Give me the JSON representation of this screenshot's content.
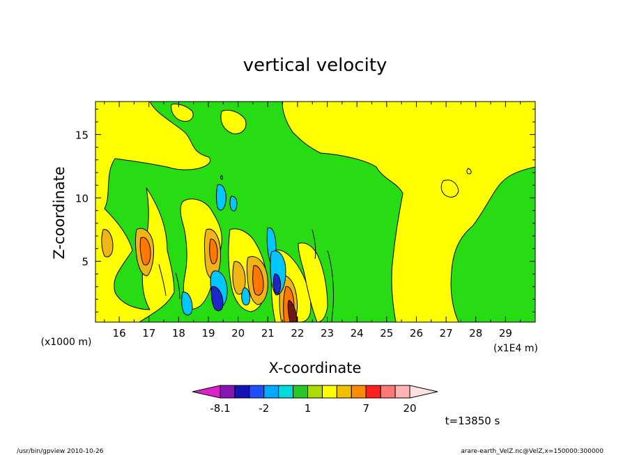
{
  "chart_data": {
    "type": "heatmap",
    "title": "vertical velocity",
    "xlabel": "X-coordinate",
    "ylabel": "Z-coordinate",
    "x_scale_label": "(x1E4 m)",
    "x_alt_label": "(x1000 m)",
    "xlim": [
      15.2,
      30.0
    ],
    "ylim": [
      0.2,
      17.6
    ],
    "x_ticks": [
      "16",
      "17",
      "18",
      "19",
      "20",
      "21",
      "22",
      "23",
      "24",
      "25",
      "26",
      "27",
      "28",
      "29"
    ],
    "y_ticks": [
      "5",
      "10",
      "15"
    ],
    "colorbar": {
      "levels": [
        -8.1,
        -6,
        -4,
        -2,
        -1,
        0,
        1,
        2,
        3,
        5,
        7,
        10,
        14,
        20
      ],
      "labels": [
        "-8.1",
        "-2",
        "1",
        "7",
        "20"
      ],
      "colors": [
        "#dd22cc",
        "#8a14b4",
        "#1414b4",
        "#1e50ff",
        "#00aaff",
        "#00dcdc",
        "#28c828",
        "#aadc00",
        "#ffff00",
        "#f0c000",
        "#ff8c00",
        "#ff2020",
        "#ff7878",
        "#ffb4b4",
        "#ffe0e0"
      ]
    },
    "field_colors": {
      "background": "#28dc14",
      "positive_weak": "#ffff00",
      "positive_mid": "#f0b414",
      "positive_strong": "#ff7800",
      "negative_weak": "#00c8ff",
      "negative_strong": "#1e28c8"
    },
    "time_label": "t=13850 s"
  },
  "footer": {
    "left": "/usr/bin/gpview  2010-10-26",
    "right": "arare-earth_VelZ.nc@VelZ,x=150000:300000"
  }
}
